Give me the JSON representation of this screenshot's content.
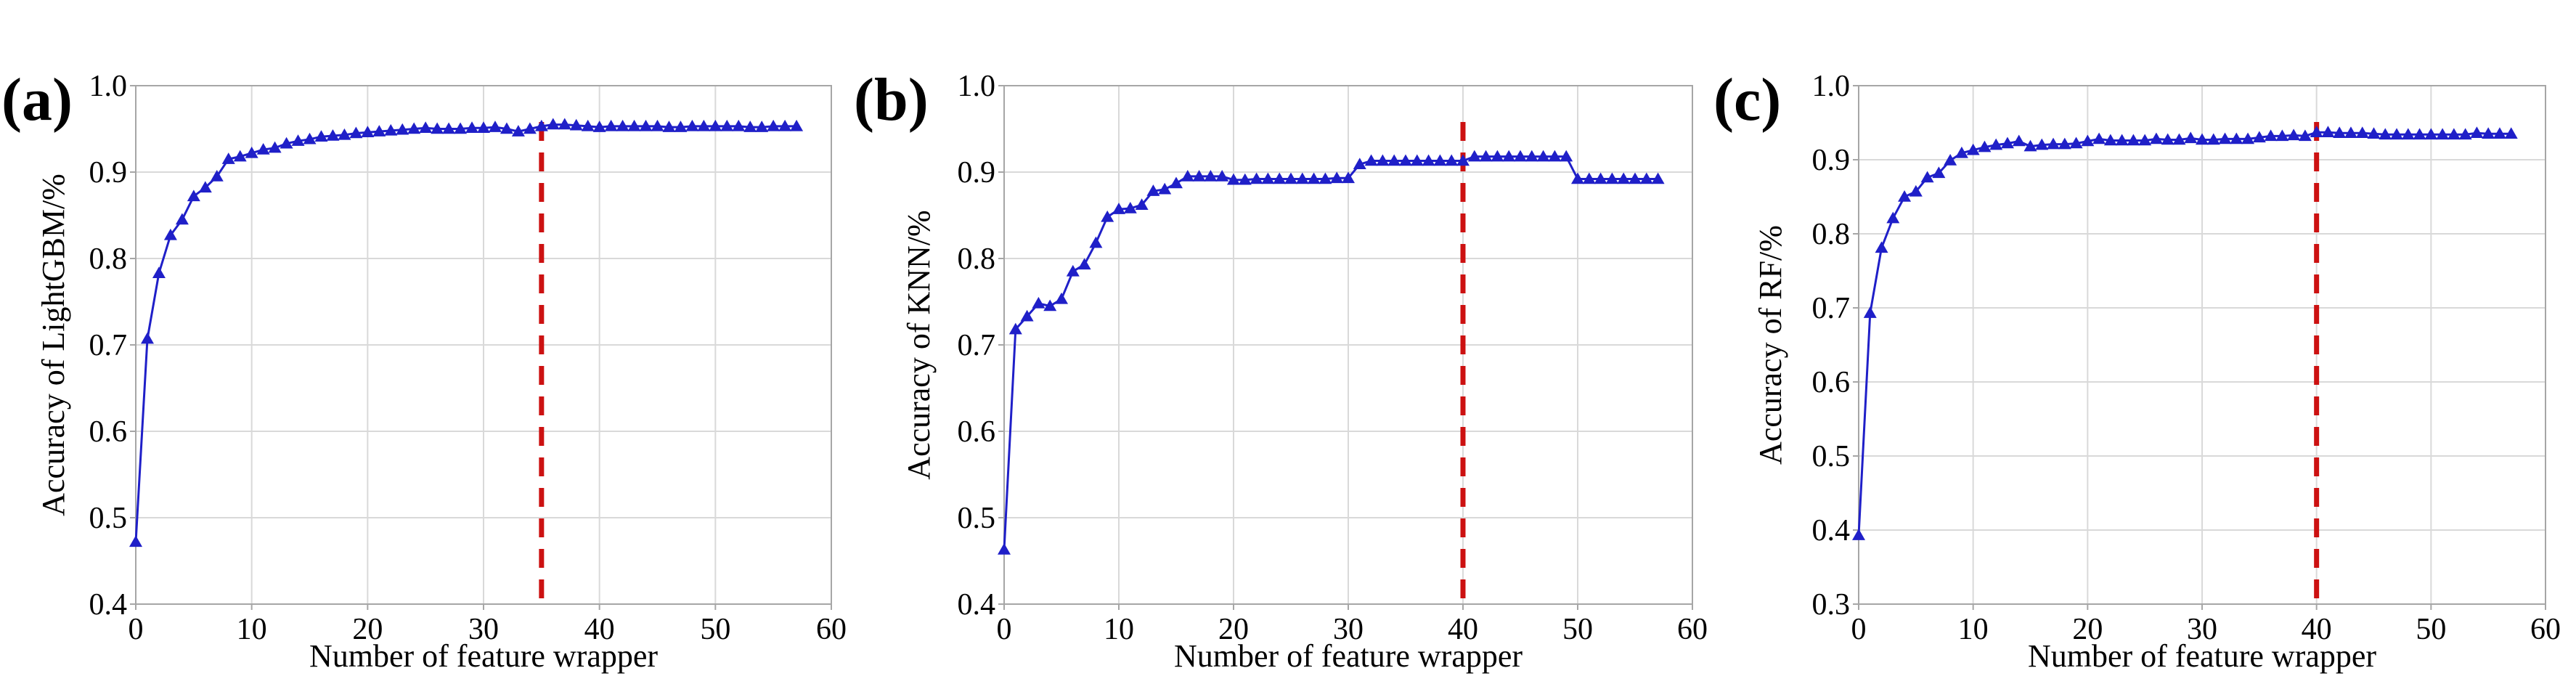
{
  "colors": {
    "series": "#1f1fc8",
    "marker_line": "#cc1111"
  },
  "chart_data": [
    {
      "type": "line",
      "panel_label": "(a)",
      "xlabel": "Number of feature wrapper",
      "ylabel": "Accuracy of LightGBM/%",
      "xlim": [
        0,
        60
      ],
      "ylim": [
        0.4,
        1.0
      ],
      "x_ticks": [
        0,
        10,
        20,
        30,
        40,
        50,
        60
      ],
      "y_ticks": [
        0.4,
        0.5,
        0.6,
        0.7,
        0.8,
        0.9,
        1.0
      ],
      "y_tick_labels": [
        "0.4",
        "0.5",
        "0.6",
        "0.7",
        "0.8",
        "0.9",
        "1.0"
      ],
      "grid": true,
      "marker": "triangle",
      "vline_x": 35,
      "series": [
        {
          "x": [
            0,
            1,
            2,
            3,
            4,
            5,
            6,
            7,
            8,
            9,
            10,
            11,
            12,
            13,
            14,
            15,
            16,
            17,
            18,
            19,
            20,
            21,
            22,
            23,
            24,
            25,
            26,
            27,
            28,
            29,
            30,
            31,
            32,
            33,
            34,
            35,
            36,
            37,
            38,
            39,
            40,
            41,
            42,
            43,
            44,
            45,
            46,
            47,
            48,
            49,
            50,
            51,
            52,
            53,
            54,
            55,
            56,
            57
          ],
          "y": [
            0.472,
            0.707,
            0.783,
            0.827,
            0.845,
            0.872,
            0.882,
            0.895,
            0.915,
            0.918,
            0.922,
            0.926,
            0.928,
            0.933,
            0.936,
            0.938,
            0.941,
            0.942,
            0.943,
            0.945,
            0.946,
            0.947,
            0.948,
            0.949,
            0.95,
            0.951,
            0.95,
            0.95,
            0.95,
            0.951,
            0.951,
            0.952,
            0.95,
            0.947,
            0.95,
            0.953,
            0.955,
            0.955,
            0.954,
            0.953,
            0.952,
            0.953,
            0.953,
            0.953,
            0.953,
            0.953,
            0.952,
            0.952,
            0.953,
            0.953,
            0.953,
            0.953,
            0.953,
            0.952,
            0.952,
            0.953,
            0.953,
            0.953
          ]
        }
      ]
    },
    {
      "type": "line",
      "panel_label": "(b)",
      "xlabel": "Number of feature wrapper",
      "ylabel": "Accuracy of KNN/%",
      "xlim": [
        0,
        60
      ],
      "ylim": [
        0.4,
        1.0
      ],
      "x_ticks": [
        0,
        10,
        20,
        30,
        40,
        50,
        60
      ],
      "y_ticks": [
        0.4,
        0.5,
        0.6,
        0.7,
        0.8,
        0.9,
        1.0
      ],
      "y_tick_labels": [
        "0.4",
        "0.5",
        "0.6",
        "0.7",
        "0.8",
        "0.9",
        "1.0"
      ],
      "grid": true,
      "marker": "triangle",
      "vline_x": 40,
      "series": [
        {
          "x": [
            0,
            1,
            2,
            3,
            4,
            5,
            6,
            7,
            8,
            9,
            10,
            11,
            12,
            13,
            14,
            15,
            16,
            17,
            18,
            19,
            20,
            21,
            22,
            23,
            24,
            25,
            26,
            27,
            28,
            29,
            30,
            31,
            32,
            33,
            34,
            35,
            36,
            37,
            38,
            39,
            40,
            41,
            42,
            43,
            44,
            45,
            46,
            47,
            48,
            49,
            50,
            51,
            52,
            53,
            54,
            55,
            56,
            57
          ],
          "y": [
            0.463,
            0.718,
            0.733,
            0.748,
            0.745,
            0.753,
            0.785,
            0.793,
            0.818,
            0.848,
            0.857,
            0.858,
            0.862,
            0.878,
            0.88,
            0.887,
            0.895,
            0.895,
            0.895,
            0.895,
            0.891,
            0.891,
            0.892,
            0.892,
            0.892,
            0.892,
            0.892,
            0.892,
            0.892,
            0.893,
            0.893,
            0.909,
            0.913,
            0.913,
            0.913,
            0.913,
            0.913,
            0.913,
            0.913,
            0.913,
            0.913,
            0.918,
            0.918,
            0.918,
            0.918,
            0.918,
            0.918,
            0.918,
            0.918,
            0.918,
            0.892,
            0.892,
            0.892,
            0.892,
            0.892,
            0.892,
            0.892,
            0.892
          ]
        }
      ]
    },
    {
      "type": "line",
      "panel_label": "(c)",
      "xlabel": "Number of feature wrapper",
      "ylabel": "Accuracy of RF/%",
      "xlim": [
        0,
        60
      ],
      "ylim": [
        0.3,
        1.0
      ],
      "x_ticks": [
        0,
        10,
        20,
        30,
        40,
        50,
        60
      ],
      "y_ticks": [
        0.3,
        0.4,
        0.5,
        0.6,
        0.7,
        0.8,
        0.9,
        1.0
      ],
      "y_tick_labels": [
        "0.3",
        "0.4",
        "0.5",
        "0.6",
        "0.7",
        "0.8",
        "0.9",
        "1.0"
      ],
      "grid": true,
      "marker": "triangle",
      "vline_x": 40,
      "series": [
        {
          "x": [
            0,
            1,
            2,
            3,
            4,
            5,
            6,
            7,
            8,
            9,
            10,
            11,
            12,
            13,
            14,
            15,
            16,
            17,
            18,
            19,
            20,
            21,
            22,
            23,
            24,
            25,
            26,
            27,
            28,
            29,
            30,
            31,
            32,
            33,
            34,
            35,
            36,
            37,
            38,
            39,
            40,
            41,
            42,
            43,
            44,
            45,
            46,
            47,
            48,
            49,
            50,
            51,
            52,
            53,
            54,
            55,
            56,
            57
          ],
          "y": [
            0.393,
            0.693,
            0.781,
            0.821,
            0.85,
            0.857,
            0.876,
            0.882,
            0.899,
            0.909,
            0.913,
            0.917,
            0.92,
            0.922,
            0.925,
            0.918,
            0.92,
            0.921,
            0.921,
            0.922,
            0.925,
            0.928,
            0.926,
            0.926,
            0.926,
            0.926,
            0.928,
            0.927,
            0.927,
            0.929,
            0.927,
            0.927,
            0.928,
            0.928,
            0.928,
            0.93,
            0.932,
            0.932,
            0.933,
            0.932,
            0.937,
            0.937,
            0.936,
            0.936,
            0.936,
            0.935,
            0.934,
            0.934,
            0.934,
            0.934,
            0.934,
            0.934,
            0.934,
            0.934,
            0.936,
            0.935,
            0.935,
            0.935
          ]
        }
      ]
    }
  ]
}
